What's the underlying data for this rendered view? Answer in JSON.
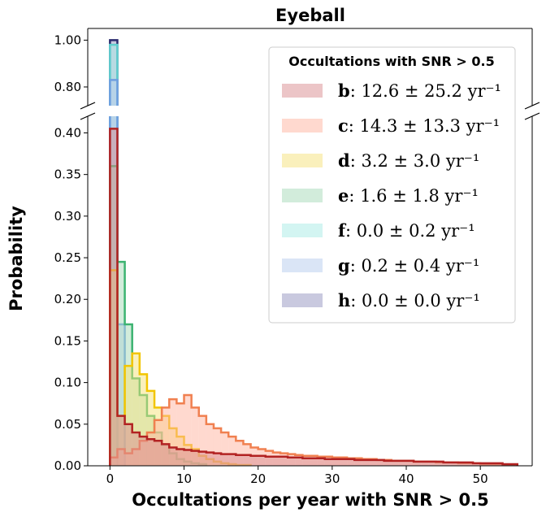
{
  "chart_data": {
    "type": "histogram",
    "title": "Eyeball",
    "xlabel": "Occultations per year with SNR > 0.5",
    "ylabel": "Probability",
    "xlim": [
      -3,
      57
    ],
    "ylim_lower": [
      0,
      0.42
    ],
    "ylim_upper": [
      0.72,
      1.05
    ],
    "broken_y_axis": true,
    "bin_width": 1,
    "x_ticks": [
      "0",
      "10",
      "20",
      "30",
      "40",
      "50"
    ],
    "y_ticks_lower": [
      "0.00",
      "0.05",
      "0.10",
      "0.15",
      "0.20",
      "0.25",
      "0.30",
      "0.35",
      "0.40"
    ],
    "y_ticks_upper": [
      "0.80",
      "1.00"
    ],
    "legend": {
      "title": "Occultations with SNR > 0.5",
      "placement": "top-right"
    },
    "series": [
      {
        "name": "b",
        "rate": "12.6 ± 25.2 yr⁻¹",
        "stats_mean": "12.6",
        "stats_sd": "25.2",
        "fill": "#d98c8f",
        "edge": "#b22222",
        "draw_order": 7,
        "values": [
          0.405,
          0.06,
          0.05,
          0.04,
          0.035,
          0.032,
          0.03,
          0.026,
          0.022,
          0.02,
          0.019,
          0.018,
          0.017,
          0.016,
          0.015,
          0.014,
          0.014,
          0.013,
          0.013,
          0.012,
          0.012,
          0.011,
          0.011,
          0.011,
          0.01,
          0.01,
          0.009,
          0.009,
          0.009,
          0.008,
          0.008,
          0.008,
          0.008,
          0.007,
          0.007,
          0.007,
          0.007,
          0.006,
          0.006,
          0.006,
          0.006,
          0.005,
          0.005,
          0.005,
          0.005,
          0.004,
          0.004,
          0.004,
          0.004,
          0.003,
          0.003,
          0.003,
          0.003,
          0.002,
          0.002
        ]
      },
      {
        "name": "c",
        "rate": "14.3 ± 13.3 yr⁻¹",
        "stats_mean": "14.3",
        "stats_sd": "13.3",
        "fill": "#ffb3a0",
        "edge": "#f08050",
        "draw_order": 6,
        "values": [
          0.01,
          0.02,
          0.015,
          0.02,
          0.03,
          0.04,
          0.055,
          0.07,
          0.08,
          0.075,
          0.085,
          0.07,
          0.06,
          0.05,
          0.045,
          0.04,
          0.035,
          0.03,
          0.026,
          0.022,
          0.02,
          0.018,
          0.016,
          0.015,
          0.014,
          0.013,
          0.012,
          0.012,
          0.011,
          0.011,
          0.01,
          0.01,
          0.009,
          0.009,
          0.008,
          0.008,
          0.007,
          0.007,
          0.006,
          0.006,
          0.006,
          0.005,
          0.005,
          0.005,
          0.004,
          0.004,
          0.004,
          0.003,
          0.003,
          0.003,
          0.002,
          0.002,
          0.002,
          0.001,
          0.001
        ]
      },
      {
        "name": "d",
        "rate": "3.2 ± 3.0 yr⁻¹",
        "stats_mean": "3.2",
        "stats_sd": "3.0",
        "fill": "#f5e27a",
        "edge": "#f2c500",
        "draw_order": 5,
        "values": [
          0.235,
          0.06,
          0.12,
          0.135,
          0.11,
          0.09,
          0.07,
          0.06,
          0.045,
          0.035,
          0.025,
          0.02,
          0.012,
          0.008,
          0.005,
          0.003,
          0.002,
          0.001,
          0.001
        ]
      },
      {
        "name": "e",
        "rate": "1.6 ± 1.8 yr⁻¹",
        "stats_mean": "1.6",
        "stats_sd": "1.8",
        "fill": "#a6d9b8",
        "edge": "#3cb371",
        "draw_order": 4,
        "values": [
          0.36,
          0.245,
          0.17,
          0.105,
          0.085,
          0.06,
          0.04,
          0.025,
          0.015,
          0.008,
          0.005,
          0.003,
          0.002
        ]
      },
      {
        "name": "f",
        "rate": "0.0 ± 0.2 yr⁻¹",
        "stats_mean": "0.0",
        "stats_sd": "0.2",
        "fill": "#a8ece6",
        "edge": "#5fcfcf",
        "draw_order": 2,
        "values": [
          0.98,
          0.02
        ]
      },
      {
        "name": "g",
        "rate": "0.2 ± 0.4 yr⁻¹",
        "stats_mean": "0.2",
        "stats_sd": "0.4",
        "fill": "#b5ccee",
        "edge": "#6f9fe0",
        "draw_order": 3,
        "values": [
          0.83,
          0.17
        ]
      },
      {
        "name": "h",
        "rate": "0.0 ± 0.0 yr⁻¹",
        "stats_mean": "0.0",
        "stats_sd": "0.0",
        "fill": "#9494bf",
        "edge": "#2a2a6e",
        "draw_order": 1,
        "values": [
          1.0
        ]
      }
    ]
  }
}
